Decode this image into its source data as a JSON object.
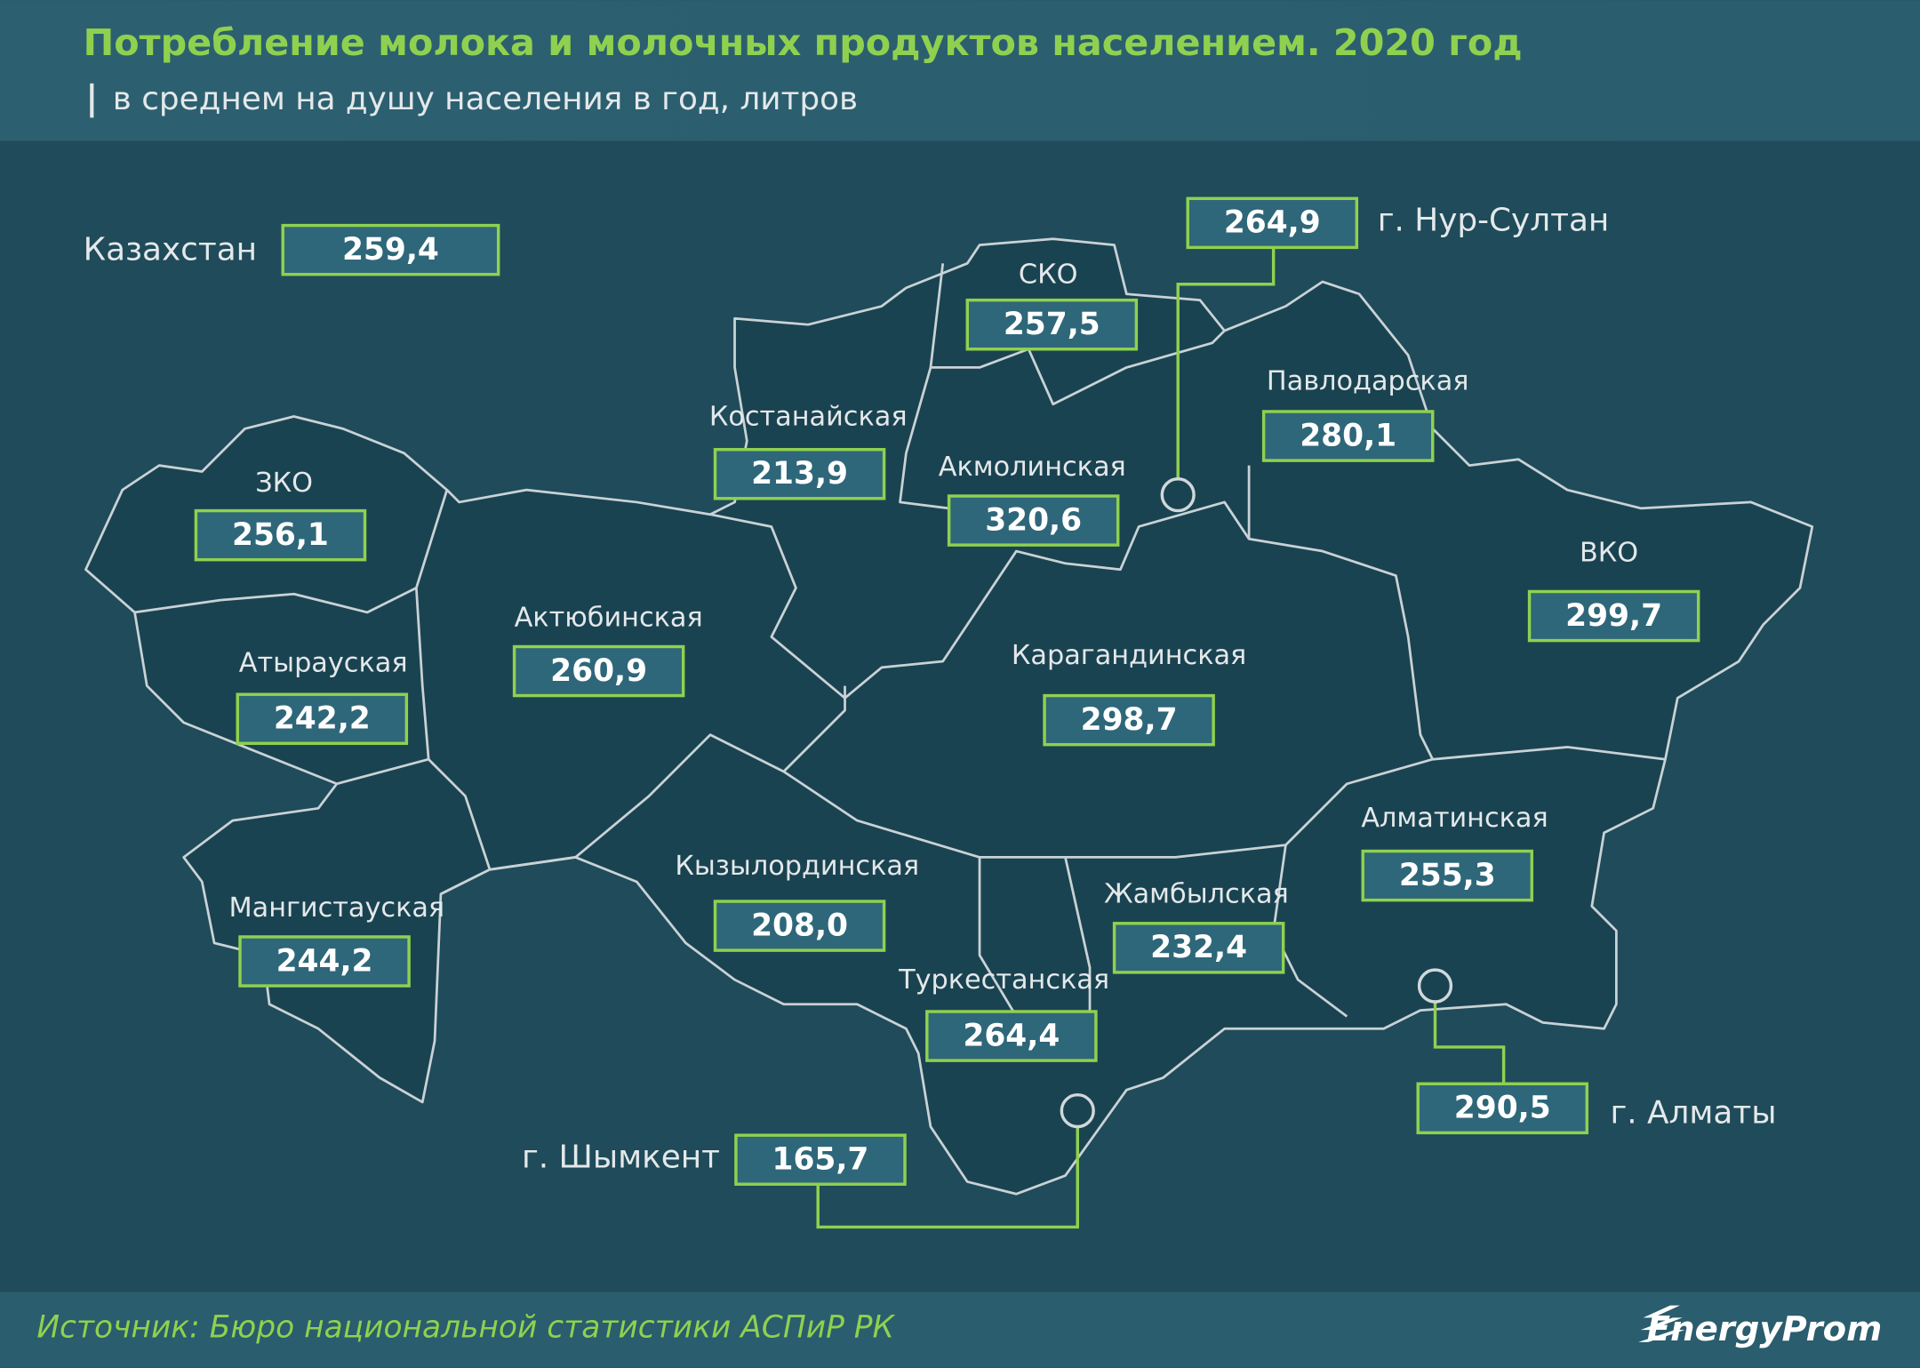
{
  "header": {
    "title": "Потребление молока и молочных продуктов населением. 2020 год",
    "subtitle": "в среднем на душу населения в год, литров"
  },
  "country": {
    "label": "Казахстан",
    "value": "259,4"
  },
  "regions": [
    {
      "label": "СКО",
      "value": "257,5"
    },
    {
      "label": "Павлодарская",
      "value": "280,1"
    },
    {
      "label": "Костанайская",
      "value": "213,9"
    },
    {
      "label": "Акмолинская",
      "value": "320,6"
    },
    {
      "label": "ЗКО",
      "value": "256,1"
    },
    {
      "label": "ВКО",
      "value": "299,7"
    },
    {
      "label": "Актюбинская",
      "value": "260,9"
    },
    {
      "label": "Атырауская",
      "value": "242,2"
    },
    {
      "label": "Карагандинская",
      "value": "298,7"
    },
    {
      "label": "Алматинская",
      "value": "255,3"
    },
    {
      "label": "Кызылординская",
      "value": "208,0"
    },
    {
      "label": "Жамбылская",
      "value": "232,4"
    },
    {
      "label": "Мангистауская",
      "value": "244,2"
    },
    {
      "label": "Туркестанская",
      "value": "264,4"
    }
  ],
  "cities": [
    {
      "label": "г. Нур-Султан",
      "value": "264,9"
    },
    {
      "label": "г. Алматы",
      "value": "290,5"
    },
    {
      "label": "г. Шымкент",
      "value": "165,7"
    }
  ],
  "footer": {
    "source": "Источник: Бюро национальной  статистики АСПиР РК",
    "logo": "EnergyProm"
  }
}
